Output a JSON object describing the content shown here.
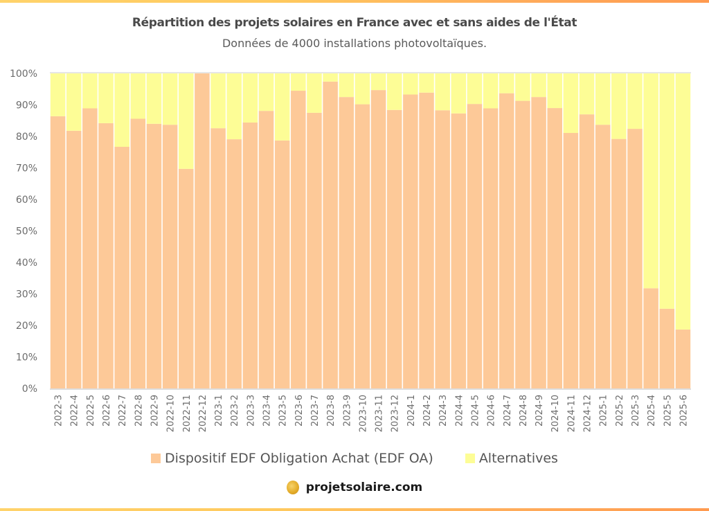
{
  "header": {
    "title": "Répartition des projets solaires en France avec et sans aides de l'État",
    "subtitle": "Données de 4000 installations photovoltaïques."
  },
  "footer": {
    "brand": "projetsolaire.com",
    "logo_icon": "sun-coin-icon"
  },
  "colors": {
    "edf_oa": "#fdc998",
    "alternatives": "#fdfd96",
    "gradient_start": "#ffd36b",
    "gradient_end": "#ff9a4f"
  },
  "chart_data": {
    "type": "bar",
    "stacked": true,
    "title": "Répartition des projets solaires en France avec et sans aides de l'État",
    "subtitle": "Données de 4000 installations photovoltaïques.",
    "xlabel": "",
    "ylabel": "",
    "ylim": [
      0,
      100
    ],
    "y_ticks": [
      "0%",
      "10%",
      "20%",
      "30%",
      "40%",
      "50%",
      "60%",
      "70%",
      "80%",
      "90%",
      "100%"
    ],
    "grid": false,
    "legend_position": "bottom-center",
    "categories": [
      "2022-3",
      "2022-4",
      "2022-5",
      "2022-6",
      "2022-7",
      "2022-8",
      "2022-9",
      "2022-10",
      "2022-11",
      "2022-12",
      "2023-1",
      "2023-2",
      "2023-3",
      "2023-4",
      "2023-5",
      "2023-6",
      "2023-7",
      "2023-8",
      "2023-9",
      "2023-10",
      "2023-11",
      "2023-12",
      "2024-1",
      "2024-2",
      "2024-3",
      "2024-4",
      "2024-5",
      "2024-6",
      "2024-7",
      "2024-8",
      "2024-9",
      "2024-10",
      "2024-11",
      "2024-12",
      "2025-1",
      "2025-2",
      "2025-3",
      "2025-4",
      "2025-5",
      "2025-6"
    ],
    "series": [
      {
        "name": "Dispositif EDF Obligation Achat (EDF OA)",
        "color": "#fdc998",
        "values": [
          86.4,
          81.8,
          88.9,
          84.2,
          76.7,
          85.6,
          84.0,
          83.7,
          69.7,
          100.0,
          82.6,
          79.1,
          84.4,
          88.1,
          78.7,
          94.5,
          87.5,
          97.4,
          92.5,
          90.2,
          94.7,
          88.4,
          93.3,
          93.9,
          88.3,
          87.3,
          90.3,
          88.9,
          93.7,
          91.3,
          92.5,
          89.0,
          81.1,
          87.0,
          83.7,
          79.2,
          82.4,
          31.8,
          25.3,
          18.7
        ]
      },
      {
        "name": "Alternatives",
        "color": "#fdfd96",
        "values": [
          13.6,
          18.2,
          11.1,
          15.8,
          23.3,
          14.4,
          16.0,
          16.3,
          30.3,
          0.0,
          17.4,
          20.9,
          15.6,
          11.9,
          21.3,
          5.5,
          12.5,
          2.6,
          7.5,
          9.8,
          5.3,
          11.6,
          6.7,
          6.1,
          11.7,
          12.7,
          9.7,
          11.1,
          6.3,
          8.7,
          7.5,
          11.0,
          18.9,
          13.0,
          16.3,
          20.8,
          17.6,
          68.2,
          74.7,
          81.3
        ]
      }
    ]
  }
}
